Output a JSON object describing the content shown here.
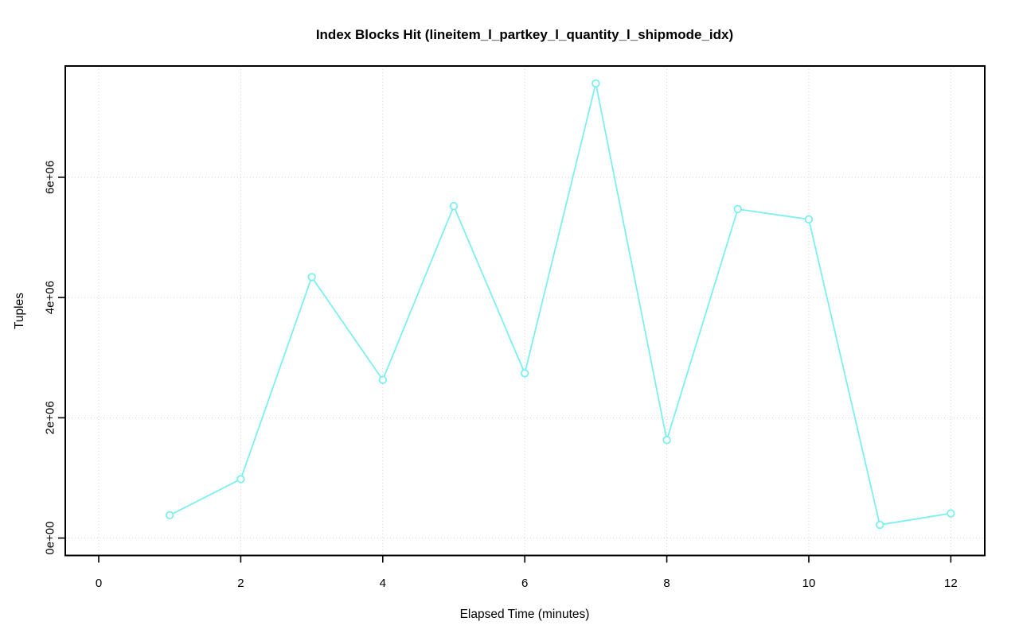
{
  "chart_data": {
    "type": "line",
    "title": "Index Blocks Hit (lineitem_l_partkey_l_quantity_l_shipmode_idx)",
    "xlabel": "Elapsed Time (minutes)",
    "ylabel": "Tuples",
    "x": [
      1,
      2,
      3,
      4,
      5,
      6,
      7,
      8,
      9,
      10,
      11,
      12
    ],
    "values": [
      380000,
      980000,
      4340000,
      2630000,
      5520000,
      2740000,
      7560000,
      1630000,
      5470000,
      5300000,
      220000,
      410000
    ],
    "series_name": "Index Blocks Hit",
    "x_ticks": {
      "values": [
        0,
        2,
        4,
        6,
        8,
        10,
        12
      ],
      "labels": [
        "0",
        "2",
        "4",
        "6",
        "8",
        "10",
        "12"
      ]
    },
    "y_ticks": {
      "values": [
        0,
        2000000,
        4000000,
        6000000
      ],
      "labels": [
        "0e+00",
        "2e+06",
        "4e+06",
        "6e+06"
      ]
    },
    "xlim": [
      -0.471,
      12.478
    ],
    "ylim": [
      -290000,
      7850000
    ],
    "grid": "dotted",
    "legend_position": "none",
    "marker": "open-circle",
    "colors": {
      "series": "#7cf0f0",
      "grid": "#d3d3d3",
      "axis": "#000000",
      "text": "#000000",
      "background": "#ffffff"
    }
  }
}
